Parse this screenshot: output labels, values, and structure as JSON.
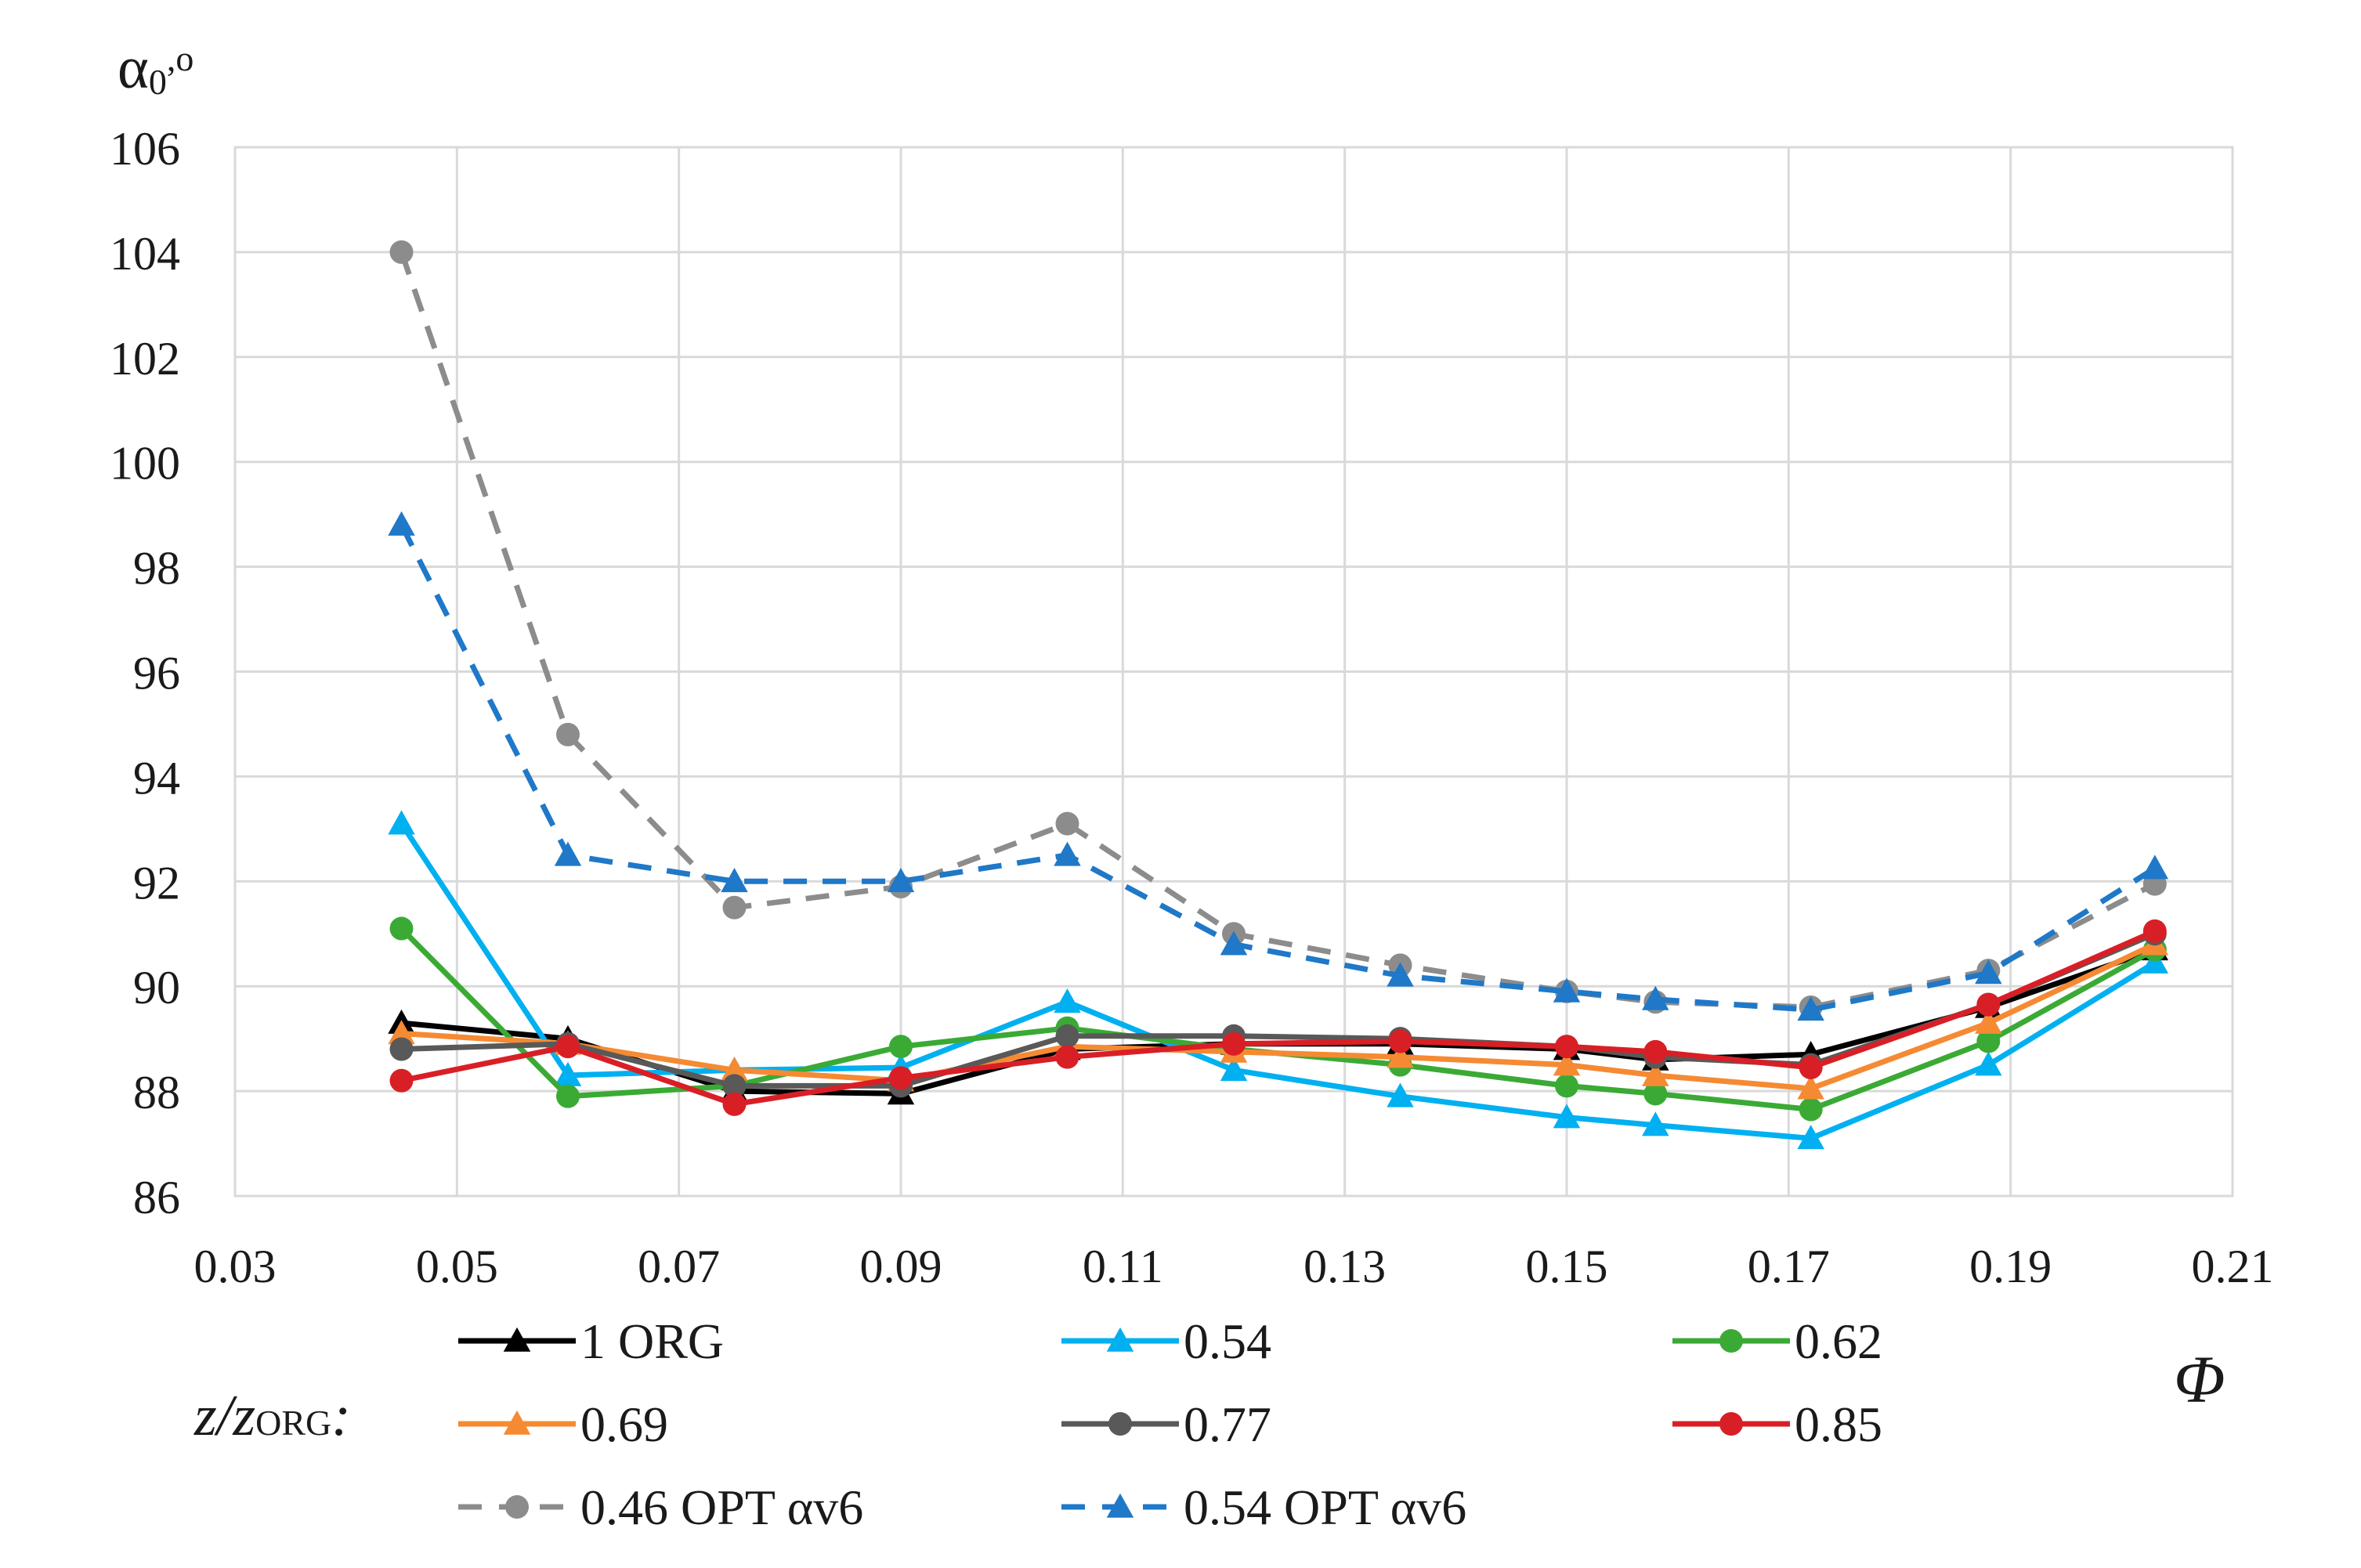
{
  "chart_data": {
    "type": "line",
    "title": "",
    "ylabel_main": "α",
    "ylabel_sub": "0",
    "ylabel_unit": ",o",
    "xlabel": "Φ",
    "xlim": [
      0.03,
      0.21
    ],
    "ylim": [
      86,
      106
    ],
    "xticks": [
      0.03,
      0.05,
      0.07,
      0.09,
      0.11,
      0.13,
      0.15,
      0.17,
      0.19,
      0.21
    ],
    "yticks": [
      86,
      88,
      90,
      92,
      94,
      96,
      98,
      100,
      102,
      104,
      106
    ],
    "xtick_labels": [
      "0.03",
      "0.05",
      "0.07",
      "0.09",
      "0.11",
      "0.13",
      "0.15",
      "0.17",
      "0.19",
      "0.21"
    ],
    "ytick_labels": [
      "86",
      "88",
      "90",
      "92",
      "94",
      "96",
      "98",
      "100",
      "102",
      "104",
      "106"
    ],
    "grid": true,
    "legend_title_main": "z/z",
    "legend_title_sub": "ORG",
    "legend_title_colon": ":",
    "legend_position": "bottom",
    "series": [
      {
        "name": "1 ORG",
        "color": "#000000",
        "marker": "triangle",
        "dash": "solid",
        "x": [
          0.045,
          0.06,
          0.075,
          0.09,
          0.105,
          0.12,
          0.135,
          0.15,
          0.158,
          0.172,
          0.188,
          0.203
        ],
        "y": [
          89.3,
          89.0,
          88.0,
          87.95,
          88.8,
          88.9,
          88.9,
          88.8,
          88.6,
          88.7,
          89.6,
          90.7
        ]
      },
      {
        "name": "0.54",
        "color": "#00b0f0",
        "marker": "triangle",
        "dash": "solid",
        "x": [
          0.045,
          0.06,
          0.075,
          0.09,
          0.105,
          0.12,
          0.135,
          0.15,
          0.158,
          0.172,
          0.188,
          0.203
        ],
        "y": [
          93.1,
          88.3,
          88.4,
          88.45,
          89.7,
          88.4,
          87.9,
          87.5,
          87.35,
          87.1,
          88.5,
          90.45
        ]
      },
      {
        "name": "0.62",
        "color": "#3aaa35",
        "marker": "circle",
        "dash": "solid",
        "x": [
          0.045,
          0.06,
          0.075,
          0.09,
          0.105,
          0.12,
          0.135,
          0.15,
          0.158,
          0.172,
          0.188,
          0.203
        ],
        "y": [
          91.1,
          87.9,
          88.1,
          88.85,
          89.2,
          88.8,
          88.5,
          88.1,
          87.95,
          87.65,
          88.95,
          90.7
        ]
      },
      {
        "name": "0.69",
        "color": "#f58a33",
        "marker": "triangle",
        "dash": "solid",
        "x": [
          0.045,
          0.06,
          0.075,
          0.09,
          0.105,
          0.12,
          0.135,
          0.15,
          0.158,
          0.172,
          0.188,
          0.203
        ],
        "y": [
          89.1,
          88.9,
          88.4,
          88.2,
          88.85,
          88.75,
          88.65,
          88.5,
          88.3,
          88.05,
          89.3,
          90.8
        ]
      },
      {
        "name": "0.77",
        "color": "#595959",
        "marker": "circle",
        "dash": "solid",
        "x": [
          0.045,
          0.06,
          0.075,
          0.09,
          0.105,
          0.12,
          0.135,
          0.15,
          0.158,
          0.172,
          0.188,
          0.203
        ],
        "y": [
          88.8,
          88.9,
          88.1,
          88.1,
          89.05,
          89.05,
          89.0,
          88.85,
          88.65,
          88.5,
          89.65,
          91.0
        ]
      },
      {
        "name": "0.85",
        "color": "#d91f26",
        "marker": "circle",
        "dash": "solid",
        "x": [
          0.045,
          0.06,
          0.075,
          0.09,
          0.105,
          0.12,
          0.135,
          0.15,
          0.158,
          0.172,
          0.188,
          0.203
        ],
        "y": [
          88.2,
          88.85,
          87.75,
          88.25,
          88.65,
          88.9,
          88.95,
          88.85,
          88.75,
          88.45,
          89.65,
          91.05
        ]
      },
      {
        "name": "0.46 OPT αv6",
        "color": "#8c8c8c",
        "marker": "circle",
        "dash": "dashed",
        "x": [
          0.045,
          0.06,
          0.075,
          0.09,
          0.105,
          0.12,
          0.135,
          0.15,
          0.158,
          0.172,
          0.188,
          0.203
        ],
        "y": [
          104.0,
          94.8,
          91.5,
          91.9,
          93.1,
          91.0,
          90.4,
          89.9,
          89.7,
          89.6,
          90.3,
          91.95
        ]
      },
      {
        "name": "0.54 OPT αv6",
        "color": "#1f78c8",
        "marker": "triangle",
        "dash": "dashed",
        "x": [
          0.045,
          0.06,
          0.075,
          0.09,
          0.105,
          0.12,
          0.135,
          0.15,
          0.158,
          0.172,
          0.188,
          0.203
        ],
        "y": [
          98.8,
          92.5,
          92.0,
          92.0,
          92.5,
          90.8,
          90.2,
          89.9,
          89.75,
          89.55,
          90.25,
          92.25
        ]
      }
    ]
  }
}
